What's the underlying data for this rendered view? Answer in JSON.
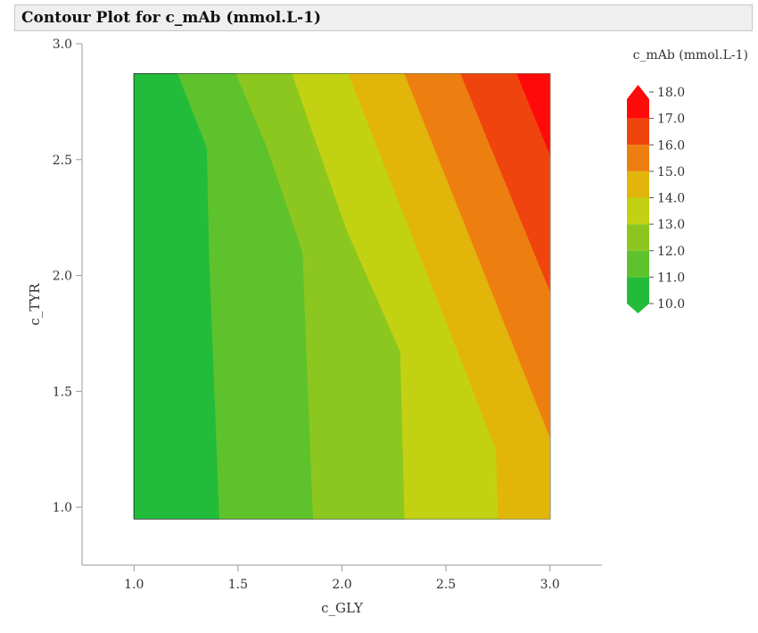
{
  "title": "Contour Plot for c_mAb (mmol.L-1)",
  "chart_data": {
    "type": "contour",
    "title": "Contour Plot for c_mAb (mmol.L-1)",
    "xlabel": "c_GLY",
    "ylabel": "c_TYR",
    "xlim": [
      0.75,
      3.25
    ],
    "ylim": [
      0.75,
      3.0
    ],
    "data_extent": {
      "x": [
        1.0,
        3.0
      ],
      "y": [
        0.95,
        2.87
      ]
    },
    "xticks": [
      1.0,
      1.5,
      2.0,
      2.5,
      3.0
    ],
    "xtick_labels": [
      "1.0",
      "1.5",
      "2.0",
      "2.5",
      "3.0"
    ],
    "yticks": [
      1.0,
      1.5,
      2.0,
      2.5,
      3.0
    ],
    "ytick_labels": [
      "1.0",
      "1.5",
      "2.0",
      "2.5",
      "3.0"
    ],
    "grid": false,
    "legend": {
      "title": "c_mAb (mmol.L-1)",
      "placement": "right",
      "levels": [
        10.0,
        11.0,
        12.0,
        13.0,
        14.0,
        15.0,
        16.0,
        17.0,
        18.0
      ],
      "level_labels": [
        "10.0",
        "11.0",
        "12.0",
        "13.0",
        "14.0",
        "15.0",
        "16.0",
        "17.0",
        "18.0"
      ],
      "colors": [
        "#22bc3a",
        "#5ec22c",
        "#8cc71f",
        "#c2d212",
        "#e2b50a",
        "#ec7f10",
        "#f0440e",
        "#ff0a0a"
      ]
    },
    "contour_boundaries": [
      {
        "level": 11.0,
        "points": [
          [
            1.21,
            2.87
          ],
          [
            1.35,
            2.55
          ],
          [
            1.36,
            2.1
          ],
          [
            1.41,
            0.95
          ]
        ]
      },
      {
        "level": 12.0,
        "points": [
          [
            1.49,
            2.87
          ],
          [
            1.64,
            2.55
          ],
          [
            1.81,
            2.1
          ],
          [
            1.86,
            0.95
          ]
        ]
      },
      {
        "level": 13.0,
        "points": [
          [
            1.76,
            2.87
          ],
          [
            2.02,
            2.2
          ],
          [
            2.28,
            1.67
          ],
          [
            2.3,
            0.95
          ]
        ]
      },
      {
        "level": 14.0,
        "points": [
          [
            2.03,
            2.87
          ],
          [
            2.74,
            1.25
          ],
          [
            2.75,
            0.95
          ]
        ]
      },
      {
        "level": 15.0,
        "points": [
          [
            2.3,
            2.87
          ],
          [
            3.0,
            1.3
          ]
        ]
      },
      {
        "level": 16.0,
        "points": [
          [
            2.57,
            2.87
          ],
          [
            3.0,
            1.93
          ]
        ]
      },
      {
        "level": 17.0,
        "points": [
          [
            2.84,
            2.87
          ],
          [
            3.0,
            2.52
          ]
        ]
      }
    ]
  }
}
